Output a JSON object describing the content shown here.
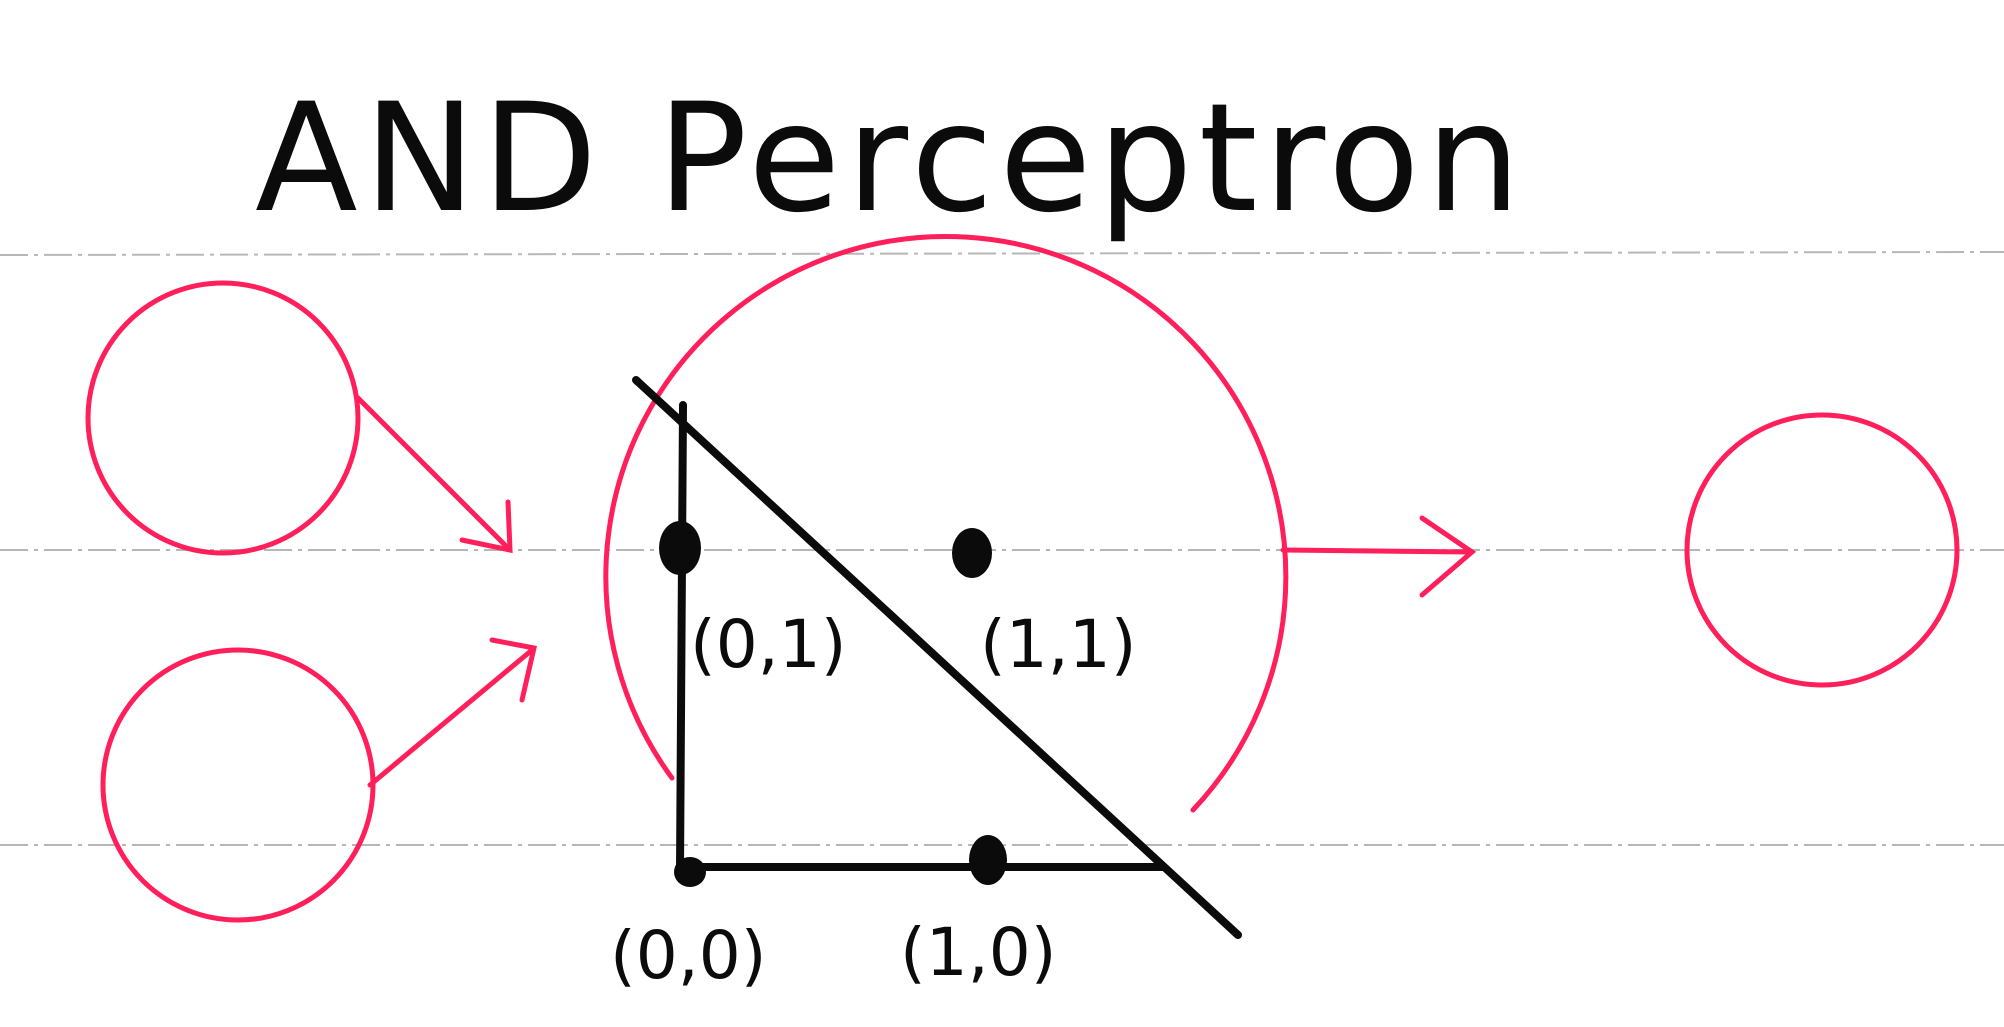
{
  "title": "AND Perceptron",
  "points": {
    "p00": "(0,0)",
    "p10": "(1,0)",
    "p01": "(0,1)",
    "p11": "(1,1)"
  },
  "colors": {
    "ink": "#0b0b0b",
    "neuron": "#ff1f5a",
    "paper": "#ffffff",
    "rule": "#b7b7b7"
  }
}
